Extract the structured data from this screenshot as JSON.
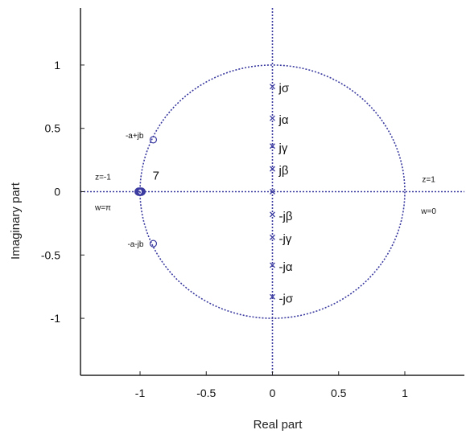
{
  "chart_data": {
    "type": "scatter",
    "title": "",
    "xlabel": "Real part",
    "ylabel": "Imaginary part",
    "xlim": [
      -1.45,
      1.45
    ],
    "ylim": [
      -1.45,
      1.45
    ],
    "x_ticks": [
      {
        "value": -1,
        "label": "-1"
      },
      {
        "value": -0.5,
        "label": "-0.5"
      },
      {
        "value": 0,
        "label": "0"
      },
      {
        "value": 0.5,
        "label": "0.5"
      },
      {
        "value": 1,
        "label": "1"
      }
    ],
    "y_ticks": [
      {
        "value": 1,
        "label": "1"
      },
      {
        "value": 0.5,
        "label": "0.5"
      },
      {
        "value": 0,
        "label": "0"
      },
      {
        "value": -0.5,
        "label": "-0.5"
      },
      {
        "value": -1,
        "label": "-1"
      }
    ],
    "grid": false,
    "unit_circle": true,
    "series": [
      {
        "marker": "x",
        "color": "#3a3aa0",
        "points": [
          {
            "x": 0,
            "y": 0.83,
            "label": "jσ"
          },
          {
            "x": 0,
            "y": 0.58,
            "label": "jα"
          },
          {
            "x": 0,
            "y": 0.36,
            "label": "jγ"
          },
          {
            "x": 0,
            "y": 0.18,
            "label": "jβ"
          },
          {
            "x": 0,
            "y": 0.0,
            "label": ""
          },
          {
            "x": 0,
            "y": -0.18,
            "label": "-jβ"
          },
          {
            "x": 0,
            "y": -0.36,
            "label": "-jγ"
          },
          {
            "x": 0,
            "y": -0.58,
            "label": "-jα"
          },
          {
            "x": 0,
            "y": -0.83,
            "label": "-jσ"
          }
        ]
      },
      {
        "marker": "o",
        "color": "#3a3aa0",
        "points": [
          {
            "x": -0.9,
            "y": 0.41,
            "label": "-a+jb"
          },
          {
            "x": -0.9,
            "y": -0.41,
            "label": "-a-jb"
          }
        ]
      },
      {
        "marker": "o",
        "color": "#3a3aa0",
        "multiplicity_label": "7",
        "points": [
          {
            "x": -1,
            "y": 0,
            "label": ""
          }
        ]
      }
    ],
    "annotations": [
      {
        "text": "z=-1",
        "x": -1.28,
        "y": 0.12
      },
      {
        "text": "w=π",
        "x": -1.28,
        "y": -0.12
      },
      {
        "text": "7",
        "x": -0.88,
        "y": 0.12
      },
      {
        "text": "z=1",
        "x": 1.18,
        "y": 0.1
      },
      {
        "text": "w=0",
        "x": 1.18,
        "y": -0.15
      }
    ]
  },
  "colors": {
    "plot_line": "#3a3aa0",
    "axis": "#222222",
    "background": "#ffffff"
  }
}
